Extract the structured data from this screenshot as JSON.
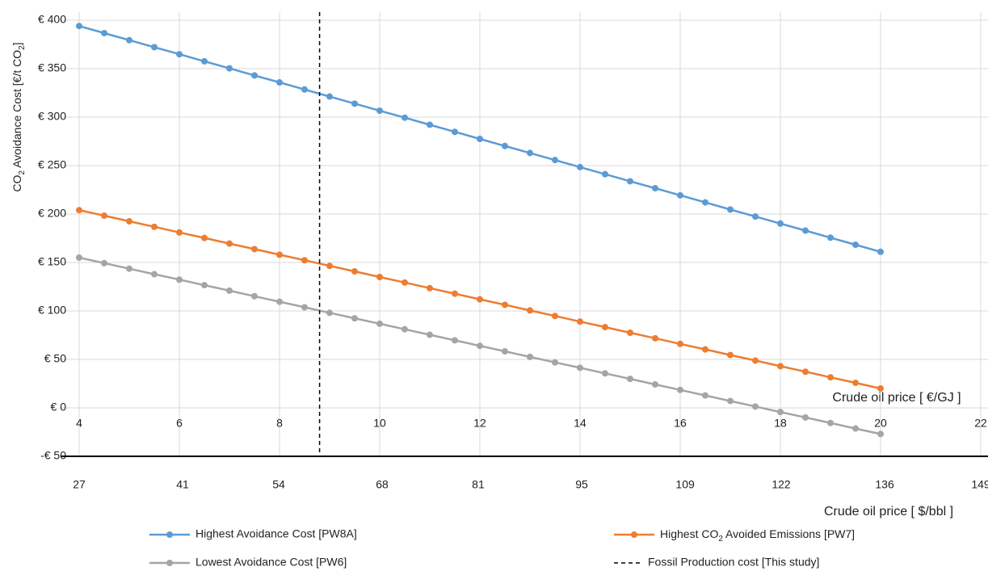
{
  "chart_data": {
    "type": "line",
    "y_label": "CO2 Avoidance Cost [€/t CO2]",
    "x_label": "Crude oil price [ €/GJ ]",
    "x2_label": "Crude oil price [ $/bbl ]",
    "x": [
      4,
      4.5,
      5,
      5.5,
      6,
      6.5,
      7,
      7.5,
      8,
      8.5,
      9,
      9.5,
      10,
      10.5,
      11,
      11.5,
      12,
      12.5,
      13,
      13.5,
      14,
      14.5,
      15,
      15.5,
      16,
      16.5,
      17,
      17.5,
      18,
      18.5,
      19,
      19.5,
      20
    ],
    "series": [
      {
        "name": "Highest Avoidance Cost [PW8A]",
        "color": "#5b9bd5",
        "values": [
          394,
          386.7,
          379.4,
          372.2,
          364.9,
          357.6,
          350.3,
          343.0,
          335.8,
          328.5,
          321.2,
          313.9,
          306.6,
          299.4,
          292.1,
          284.8,
          277.5,
          270.2,
          263.0,
          255.7,
          248.4,
          241.1,
          233.8,
          226.6,
          219.3,
          212.0,
          204.7,
          197.4,
          190.2,
          182.9,
          175.6,
          168.3,
          161.0
        ]
      },
      {
        "name": "Highest CO2 Avoided Emissions [PW7]",
        "color": "#ed7d31",
        "values": [
          204,
          198.3,
          192.5,
          186.8,
          181,
          175.3,
          169.5,
          163.8,
          158,
          152.3,
          146.5,
          140.8,
          135,
          129.3,
          123.5,
          117.8,
          112,
          106.3,
          100.5,
          94.8,
          89,
          83.3,
          77.5,
          71.8,
          66,
          60.3,
          54.5,
          48.8,
          43,
          37.3,
          31.5,
          25.8,
          20
        ]
      },
      {
        "name": "Lowest Avoidance Cost [PW6]",
        "color": "#a5a5a5",
        "values": [
          155,
          149.3,
          143.6,
          137.9,
          132.3,
          126.6,
          120.9,
          115.2,
          109.5,
          103.8,
          98.1,
          92.4,
          86.8,
          81.1,
          75.4,
          69.7,
          64,
          58.3,
          52.6,
          46.9,
          41.3,
          35.6,
          29.9,
          24.2,
          18.5,
          12.8,
          7.1,
          1.4,
          -4.3,
          -9.9,
          -15.6,
          -21.3,
          -27
        ]
      }
    ],
    "vline": {
      "name": "Fossil Production cost [This study]",
      "x": 8.8,
      "color": "#000000"
    },
    "xlim": [
      4,
      22
    ],
    "xticks": [
      4,
      6,
      8,
      10,
      12,
      14,
      16,
      18,
      20,
      22
    ],
    "x2lim": [
      27,
      149
    ],
    "x2ticks": [
      27,
      41,
      54,
      68,
      81,
      95,
      109,
      122,
      136,
      149
    ],
    "ylim": [
      -50,
      400
    ],
    "yticks": [
      {
        "value": -50,
        "label": "-€ 50"
      },
      {
        "value": 0,
        "label": "€ 0"
      },
      {
        "value": 50,
        "label": "€ 50"
      },
      {
        "value": 100,
        "label": "€ 100"
      },
      {
        "value": 150,
        "label": "€ 150"
      },
      {
        "value": 200,
        "label": "€ 200"
      },
      {
        "value": 250,
        "label": "€ 250"
      },
      {
        "value": 300,
        "label": "€ 300"
      },
      {
        "value": 350,
        "label": "€ 350"
      },
      {
        "value": 400,
        "label": "€ 400"
      }
    ],
    "grid": true
  }
}
